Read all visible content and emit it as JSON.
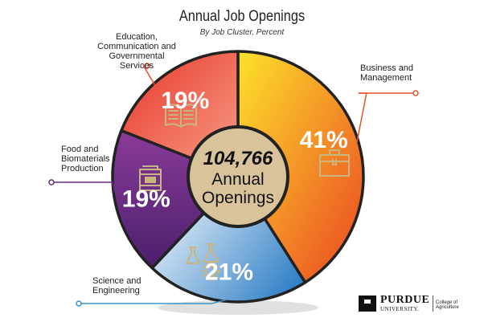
{
  "chart_data": {
    "type": "pie",
    "title": "Annual Job Openings",
    "subtitle": "By Job Cluster, Percent",
    "center_value": "104,766",
    "center_line1": "Annual",
    "center_line2": "Openings",
    "slices": [
      {
        "label": "Business and\nManagement",
        "value": 41,
        "value_label": "41%",
        "color_start": "#fde22a",
        "color_end": "#ea4423",
        "icon": "briefcase-icon",
        "leader_color": "#e25428"
      },
      {
        "label": "Science and\nEngineering",
        "value": 21,
        "value_label": "21%",
        "color_start": "#f2f7fc",
        "color_end": "#2f7fc6",
        "icon": "flasks-gear-icon",
        "leader_color": "#3a93c9"
      },
      {
        "label": "Food and\nBiomaterials\nProduction",
        "value": 19,
        "value_label": "19%",
        "color_start": "#8a3b99",
        "color_end": "#4b1f6b",
        "icon": "food-can-icon",
        "leader_color": "#6a2b84"
      },
      {
        "label": "Education,\nCommunication and\nGovernmental Services",
        "value": 19,
        "value_label": "19%",
        "color_start": "#f6a189",
        "color_end": "#e9352a",
        "icon": "open-book-icon",
        "leader_color": "#e9482d"
      }
    ]
  },
  "colors": {
    "center_fill": "#d8c39b",
    "center_text": "#111111",
    "icon_gold": "#c9b57f"
  },
  "logo": {
    "wordmark": "PURDUE",
    "subword": "UNIVERSITY.",
    "college": "College of Agriculture"
  }
}
